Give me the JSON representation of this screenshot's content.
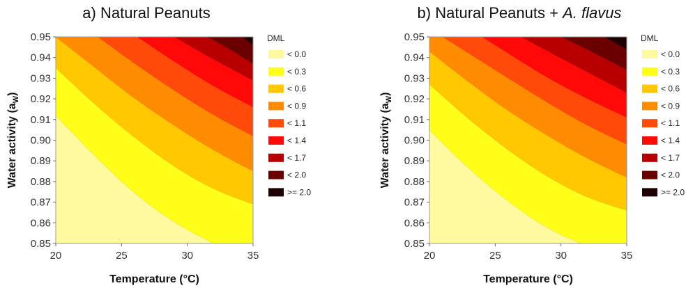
{
  "chart_data": [
    {
      "type": "contour",
      "title_prefix": "a) Natural Peanuts",
      "title_italic": "",
      "xlabel": "Temperature (°C)",
      "ylabel_main": "Water activity (a",
      "ylabel_sub": "W",
      "ylabel_end": ")",
      "xlim": [
        20,
        35
      ],
      "ylim": [
        0.85,
        0.95
      ],
      "xticks": [
        "20",
        "25",
        "30",
        "35"
      ],
      "yticks": [
        "0.85",
        "0.86",
        "0.87",
        "0.88",
        "0.89",
        "0.90",
        "0.91",
        "0.92",
        "0.93",
        "0.94",
        "0.95"
      ],
      "legend_title": "DML",
      "legend": [
        "< 0.0",
        "< 0.3",
        "< 0.6",
        "< 0.9",
        "< 1.1",
        "< 1.4",
        "< 1.7",
        "< 2.0",
        ">= 2.0"
      ],
      "colors": [
        "#fff9a0",
        "#ffff1a",
        "#ffc800",
        "#ff8c00",
        "#ff4a0a",
        "#ff0808",
        "#b80000",
        "#6a0000",
        "#1e0000"
      ],
      "contour_boundaries": [
        {
          "level": 0.0,
          "points": [
            [
              20,
              0.912
            ],
            [
              23,
              0.892
            ],
            [
              26,
              0.874
            ],
            [
              29,
              0.86
            ],
            [
              32,
              0.85
            ]
          ]
        },
        {
          "level": 0.3,
          "points": [
            [
              20,
              0.935
            ],
            [
              23,
              0.917
            ],
            [
              26,
              0.901
            ],
            [
              29,
              0.887
            ],
            [
              32,
              0.876
            ],
            [
              35,
              0.869
            ]
          ]
        },
        {
          "level": 0.6,
          "points": [
            [
              20,
              0.95
            ],
            [
              23,
              0.935
            ],
            [
              26,
              0.92
            ],
            [
              29,
              0.907
            ],
            [
              32,
              0.895
            ],
            [
              35,
              0.885
            ]
          ]
        },
        {
          "level": 0.9,
          "points": [
            [
              23.2,
              0.95
            ],
            [
              26,
              0.937
            ],
            [
              29,
              0.924
            ],
            [
              32,
              0.912
            ],
            [
              35,
              0.902
            ]
          ]
        },
        {
          "level": 1.1,
          "points": [
            [
              26.2,
              0.95
            ],
            [
              29,
              0.938
            ],
            [
              32,
              0.926
            ],
            [
              35,
              0.916
            ]
          ]
        },
        {
          "level": 1.4,
          "points": [
            [
              29.0,
              0.95
            ],
            [
              32,
              0.939
            ],
            [
              35,
              0.929
            ]
          ]
        },
        {
          "level": 1.7,
          "points": [
            [
              31.5,
              0.95
            ],
            [
              33,
              0.945
            ],
            [
              35,
              0.937
            ]
          ]
        },
        {
          "level": 2.0,
          "points": [
            [
              34.2,
              0.95
            ],
            [
              35,
              0.946
            ]
          ]
        }
      ]
    },
    {
      "type": "contour",
      "title_prefix": "b) Natural Peanuts + ",
      "title_italic": "A. flavus",
      "xlabel": "Temperature (°C)",
      "ylabel_main": "Water activity (a",
      "ylabel_sub": "W",
      "ylabel_end": ")",
      "xlim": [
        20,
        35
      ],
      "ylim": [
        0.85,
        0.95
      ],
      "xticks": [
        "20",
        "25",
        "30",
        "35"
      ],
      "yticks": [
        "0.85",
        "0.86",
        "0.87",
        "0.88",
        "0.89",
        "0.90",
        "0.91",
        "0.92",
        "0.93",
        "0.94",
        "0.95"
      ],
      "legend_title": "DML",
      "legend": [
        "< 0.0",
        "< 0.3",
        "< 0.6",
        "< 0.9",
        "< 1.1",
        "< 1.4",
        "< 1.7",
        "< 2.0",
        ">= 2.0"
      ],
      "colors": [
        "#fff9a0",
        "#ffff1a",
        "#ffc800",
        "#ff8c00",
        "#ff4a0a",
        "#ff0808",
        "#b80000",
        "#6a0000",
        "#1e0000"
      ],
      "contour_boundaries": [
        {
          "level": 0.0,
          "points": [
            [
              20,
              0.905
            ],
            [
              23,
              0.886
            ],
            [
              26,
              0.87
            ],
            [
              29,
              0.857
            ],
            [
              31.5,
              0.85
            ]
          ]
        },
        {
          "level": 0.3,
          "points": [
            [
              20,
              0.927
            ],
            [
              23,
              0.91
            ],
            [
              26,
              0.895
            ],
            [
              29,
              0.882
            ],
            [
              32,
              0.872
            ],
            [
              35,
              0.866
            ]
          ]
        },
        {
          "level": 0.6,
          "points": [
            [
              20,
              0.943
            ],
            [
              23,
              0.928
            ],
            [
              26,
              0.914
            ],
            [
              29,
              0.902
            ],
            [
              32,
              0.891
            ],
            [
              35,
              0.882
            ]
          ]
        },
        {
          "level": 0.9,
          "points": [
            [
              21.0,
              0.95
            ],
            [
              23,
              0.942
            ],
            [
              26,
              0.93
            ],
            [
              29,
              0.918
            ],
            [
              32,
              0.907
            ],
            [
              35,
              0.898
            ]
          ]
        },
        {
          "level": 1.1,
          "points": [
            [
              24.0,
              0.95
            ],
            [
              26,
              0.942
            ],
            [
              29,
              0.93
            ],
            [
              32,
              0.92
            ],
            [
              35,
              0.911
            ]
          ]
        },
        {
          "level": 1.4,
          "points": [
            [
              27.0,
              0.95
            ],
            [
              29,
              0.943
            ],
            [
              32,
              0.933
            ],
            [
              35,
              0.923
            ]
          ]
        },
        {
          "level": 1.7,
          "points": [
            [
              30.0,
              0.95
            ],
            [
              32,
              0.944
            ],
            [
              35,
              0.934
            ]
          ]
        },
        {
          "level": 2.0,
          "points": [
            [
              33.3,
              0.95
            ],
            [
              35,
              0.944
            ]
          ]
        }
      ]
    }
  ]
}
